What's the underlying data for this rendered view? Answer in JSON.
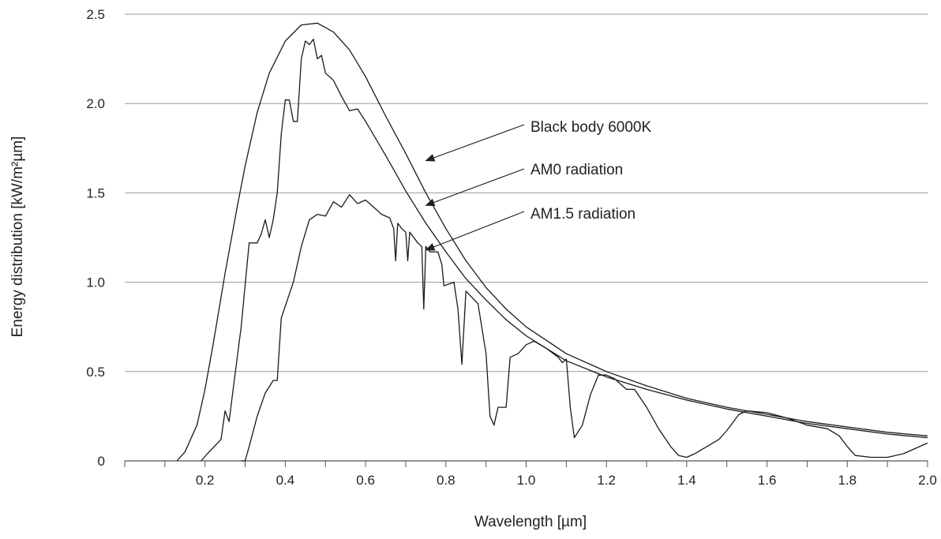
{
  "chart_data": {
    "type": "line",
    "title": "",
    "xlabel": "Wavelength [µm]",
    "ylabel": "Energy distribution [kW/m²µm]",
    "xlim": [
      0,
      2.0
    ],
    "ylim": [
      0,
      2.5
    ],
    "grid": "horizontal",
    "x_ticks": [
      "0.2",
      "0.4",
      "0.6",
      "0.8",
      "1.0",
      "1.2",
      "1.4",
      "1.6",
      "1.8",
      "2.0"
    ],
    "y_ticks": [
      "0",
      "0.5",
      "1.0",
      "1.5",
      "2.0",
      "2.5"
    ],
    "series": [
      {
        "name": "Black body 6000K",
        "points": [
          [
            0.13,
            0.0
          ],
          [
            0.15,
            0.05
          ],
          [
            0.18,
            0.2
          ],
          [
            0.2,
            0.4
          ],
          [
            0.22,
            0.65
          ],
          [
            0.25,
            1.05
          ],
          [
            0.28,
            1.42
          ],
          [
            0.3,
            1.65
          ],
          [
            0.33,
            1.95
          ],
          [
            0.36,
            2.17
          ],
          [
            0.4,
            2.35
          ],
          [
            0.44,
            2.44
          ],
          [
            0.48,
            2.45
          ],
          [
            0.52,
            2.4
          ],
          [
            0.56,
            2.3
          ],
          [
            0.6,
            2.15
          ],
          [
            0.65,
            1.93
          ],
          [
            0.7,
            1.72
          ],
          [
            0.75,
            1.5
          ],
          [
            0.8,
            1.3
          ],
          [
            0.85,
            1.12
          ],
          [
            0.9,
            0.97
          ],
          [
            0.95,
            0.85
          ],
          [
            1.0,
            0.75
          ],
          [
            1.1,
            0.6
          ],
          [
            1.2,
            0.5
          ],
          [
            1.3,
            0.42
          ],
          [
            1.4,
            0.35
          ],
          [
            1.5,
            0.3
          ],
          [
            1.6,
            0.26
          ],
          [
            1.7,
            0.22
          ],
          [
            1.8,
            0.19
          ],
          [
            1.9,
            0.16
          ],
          [
            2.0,
            0.14
          ]
        ]
      },
      {
        "name": "AM0 radiation",
        "points": [
          [
            0.19,
            0.0
          ],
          [
            0.21,
            0.05
          ],
          [
            0.24,
            0.12
          ],
          [
            0.25,
            0.28
          ],
          [
            0.26,
            0.22
          ],
          [
            0.27,
            0.4
          ],
          [
            0.29,
            0.75
          ],
          [
            0.31,
            1.22
          ],
          [
            0.33,
            1.22
          ],
          [
            0.34,
            1.27
          ],
          [
            0.35,
            1.35
          ],
          [
            0.36,
            1.25
          ],
          [
            0.37,
            1.35
          ],
          [
            0.38,
            1.5
          ],
          [
            0.39,
            1.83
          ],
          [
            0.4,
            2.02
          ],
          [
            0.41,
            2.02
          ],
          [
            0.42,
            1.9
          ],
          [
            0.43,
            1.9
          ],
          [
            0.44,
            2.25
          ],
          [
            0.45,
            2.35
          ],
          [
            0.46,
            2.33
          ],
          [
            0.47,
            2.36
          ],
          [
            0.48,
            2.25
          ],
          [
            0.49,
            2.27
          ],
          [
            0.5,
            2.17
          ],
          [
            0.52,
            2.13
          ],
          [
            0.54,
            2.04
          ],
          [
            0.56,
            1.96
          ],
          [
            0.58,
            1.97
          ],
          [
            0.6,
            1.9
          ],
          [
            0.65,
            1.71
          ],
          [
            0.7,
            1.51
          ],
          [
            0.75,
            1.33
          ],
          [
            0.8,
            1.17
          ],
          [
            0.85,
            1.02
          ],
          [
            0.9,
            0.9
          ],
          [
            0.95,
            0.79
          ],
          [
            1.0,
            0.7
          ],
          [
            1.1,
            0.56
          ],
          [
            1.2,
            0.47
          ],
          [
            1.3,
            0.4
          ],
          [
            1.4,
            0.34
          ],
          [
            1.5,
            0.29
          ],
          [
            1.6,
            0.25
          ],
          [
            1.7,
            0.21
          ],
          [
            1.8,
            0.18
          ],
          [
            1.9,
            0.15
          ],
          [
            2.0,
            0.13
          ]
        ]
      },
      {
        "name": "AM1.5 radiation",
        "points": [
          [
            0.29,
            0.0
          ],
          [
            0.3,
            0.0
          ],
          [
            0.31,
            0.08
          ],
          [
            0.33,
            0.25
          ],
          [
            0.35,
            0.38
          ],
          [
            0.37,
            0.45
          ],
          [
            0.38,
            0.45
          ],
          [
            0.39,
            0.8
          ],
          [
            0.42,
            1.0
          ],
          [
            0.44,
            1.2
          ],
          [
            0.46,
            1.35
          ],
          [
            0.48,
            1.38
          ],
          [
            0.5,
            1.37
          ],
          [
            0.52,
            1.45
          ],
          [
            0.54,
            1.42
          ],
          [
            0.56,
            1.49
          ],
          [
            0.58,
            1.44
          ],
          [
            0.6,
            1.46
          ],
          [
            0.62,
            1.42
          ],
          [
            0.64,
            1.38
          ],
          [
            0.66,
            1.36
          ],
          [
            0.67,
            1.3
          ],
          [
            0.675,
            1.12
          ],
          [
            0.68,
            1.33
          ],
          [
            0.69,
            1.3
          ],
          [
            0.7,
            1.28
          ],
          [
            0.705,
            1.12
          ],
          [
            0.71,
            1.28
          ],
          [
            0.73,
            1.22
          ],
          [
            0.74,
            1.2
          ],
          [
            0.745,
            0.85
          ],
          [
            0.75,
            1.2
          ],
          [
            0.76,
            1.17
          ],
          [
            0.78,
            1.17
          ],
          [
            0.79,
            1.1
          ],
          [
            0.795,
            0.98
          ],
          [
            0.82,
            1.0
          ],
          [
            0.83,
            0.85
          ],
          [
            0.84,
            0.54
          ],
          [
            0.85,
            0.95
          ],
          [
            0.88,
            0.88
          ],
          [
            0.9,
            0.6
          ],
          [
            0.91,
            0.25
          ],
          [
            0.92,
            0.2
          ],
          [
            0.93,
            0.3
          ],
          [
            0.95,
            0.3
          ],
          [
            0.96,
            0.58
          ],
          [
            0.98,
            0.6
          ],
          [
            1.0,
            0.65
          ],
          [
            1.02,
            0.67
          ],
          [
            1.05,
            0.63
          ],
          [
            1.08,
            0.58
          ],
          [
            1.09,
            0.55
          ],
          [
            1.1,
            0.57
          ],
          [
            1.11,
            0.3
          ],
          [
            1.12,
            0.13
          ],
          [
            1.14,
            0.2
          ],
          [
            1.16,
            0.37
          ],
          [
            1.18,
            0.48
          ],
          [
            1.2,
            0.48
          ],
          [
            1.22,
            0.46
          ],
          [
            1.25,
            0.4
          ],
          [
            1.27,
            0.4
          ],
          [
            1.3,
            0.3
          ],
          [
            1.33,
            0.18
          ],
          [
            1.36,
            0.08
          ],
          [
            1.38,
            0.03
          ],
          [
            1.4,
            0.02
          ],
          [
            1.42,
            0.04
          ],
          [
            1.45,
            0.08
          ],
          [
            1.48,
            0.12
          ],
          [
            1.5,
            0.17
          ],
          [
            1.53,
            0.26
          ],
          [
            1.55,
            0.28
          ],
          [
            1.6,
            0.27
          ],
          [
            1.65,
            0.24
          ],
          [
            1.7,
            0.2
          ],
          [
            1.75,
            0.18
          ],
          [
            1.78,
            0.14
          ],
          [
            1.8,
            0.08
          ],
          [
            1.82,
            0.03
          ],
          [
            1.86,
            0.02
          ],
          [
            1.9,
            0.02
          ],
          [
            1.94,
            0.04
          ],
          [
            2.0,
            0.1
          ]
        ]
      }
    ],
    "annotations": [
      {
        "text": "Black body 6000K",
        "series": "Black body 6000K",
        "x": 0.75,
        "y": 1.68
      },
      {
        "text": "AM0 radiation",
        "series": "AM0 radiation",
        "x": 0.75,
        "y": 1.43
      },
      {
        "text": "AM1.5 radiation",
        "series": "AM1.5 radiation",
        "x": 0.75,
        "y": 1.18
      }
    ]
  }
}
